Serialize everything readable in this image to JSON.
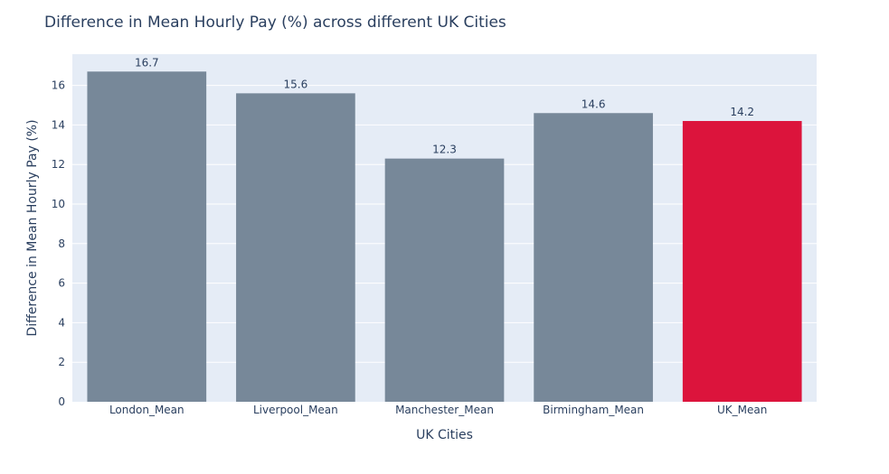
{
  "chart_data": {
    "type": "bar",
    "title": "Difference in Mean Hourly Pay (%) across different UK Cities",
    "xlabel": "UK Cities",
    "ylabel": "Difference in Mean Hourly Pay (%)",
    "categories": [
      "London_Mean",
      "Liverpool_Mean",
      "Manchester_Mean",
      "Birmingham_Mean",
      "UK_Mean"
    ],
    "values": [
      16.7,
      15.6,
      12.3,
      14.6,
      14.2
    ],
    "data_labels": [
      "16.7",
      "15.6",
      "12.3",
      "14.6",
      "14.2"
    ],
    "bar_colors": [
      "#778899",
      "#778899",
      "#778899",
      "#778899",
      "#DC143C"
    ],
    "yticks": [
      0,
      2,
      4,
      6,
      8,
      10,
      12,
      14,
      16
    ],
    "ylim": [
      0,
      17.58
    ],
    "grid": true,
    "plot_background": "#E5ECF6",
    "gridline_color": "#ffffff"
  }
}
